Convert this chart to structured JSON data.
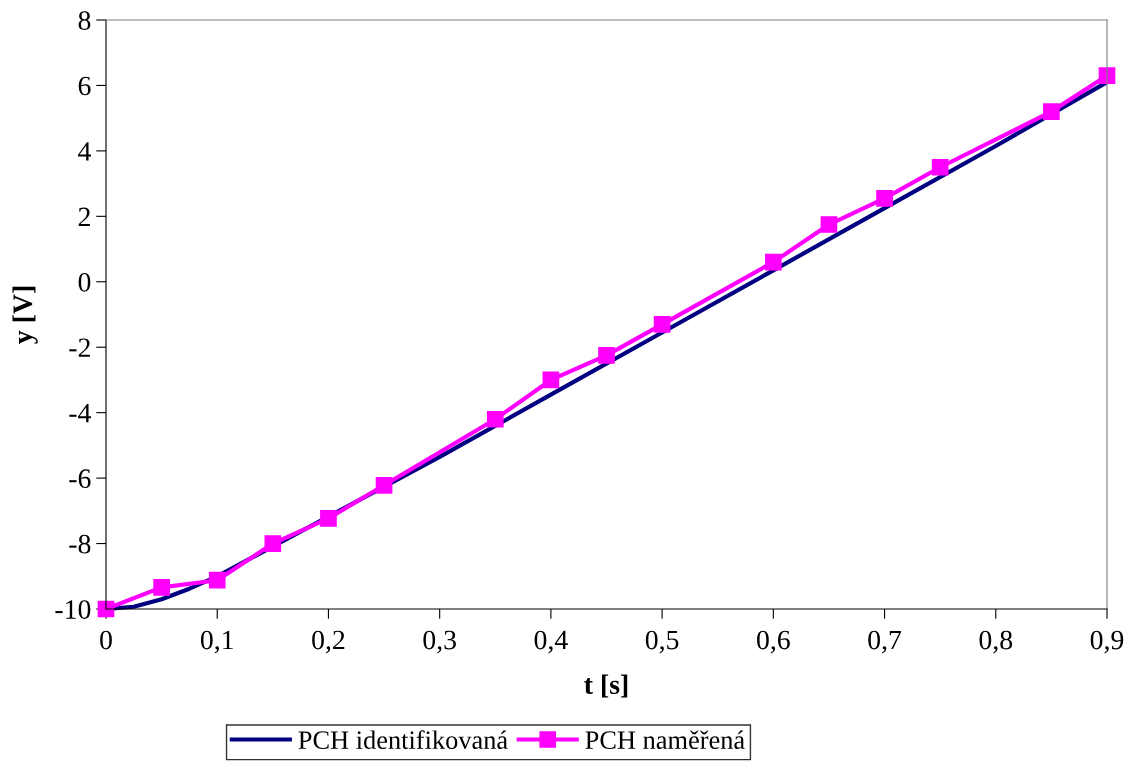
{
  "chart_data": {
    "type": "line",
    "xlabel": "t [s]",
    "ylabel": "y [V]",
    "xlim": [
      0,
      0.9
    ],
    "xticks": [
      0,
      {
        "value": 0.1,
        "label": "0,1"
      },
      {
        "value": 0.2,
        "label": "0,2"
      },
      {
        "value": 0.3,
        "label": "0,3"
      },
      {
        "value": 0.4,
        "label": "0,4"
      },
      {
        "value": 0.5,
        "label": "0,5"
      },
      {
        "value": 0.6,
        "label": "0,6"
      },
      {
        "value": 0.7,
        "label": "0,7"
      },
      {
        "value": 0.8,
        "label": "0,8"
      },
      {
        "value": 0.9,
        "label": "0,9"
      }
    ],
    "ylim": [
      -10,
      8
    ],
    "yticks": [
      -10,
      -8,
      -6,
      -4,
      -2,
      0,
      2,
      4,
      6,
      8
    ],
    "grid": false,
    "legend": "bottom",
    "series": [
      {
        "name": "PCH identifikovaná",
        "color": "#000080",
        "marker": "none",
        "x": [
          0,
          0.025,
          0.05,
          0.075,
          0.1,
          0.3,
          0.4,
          0.5,
          0.6,
          0.7,
          0.8,
          0.9
        ],
        "values": [
          -10,
          -9.93,
          -9.7,
          -9.38,
          -9.0,
          -5.35,
          -3.45,
          -1.55,
          0.35,
          2.25,
          4.15,
          6.1
        ]
      },
      {
        "name": "PCH naměřená",
        "color": "#ff00ff",
        "marker": "square",
        "x": [
          0,
          0.05,
          0.1,
          0.15,
          0.2,
          0.25,
          0.35,
          0.4,
          0.45,
          0.5,
          0.6,
          0.65,
          0.7,
          0.75,
          0.85,
          0.9
        ],
        "values": [
          -10,
          -9.34,
          -9.12,
          -8.0,
          -7.23,
          -6.22,
          -4.2,
          -3.0,
          -2.25,
          -1.3,
          0.6,
          1.75,
          2.55,
          3.5,
          5.2,
          6.3
        ]
      }
    ]
  }
}
